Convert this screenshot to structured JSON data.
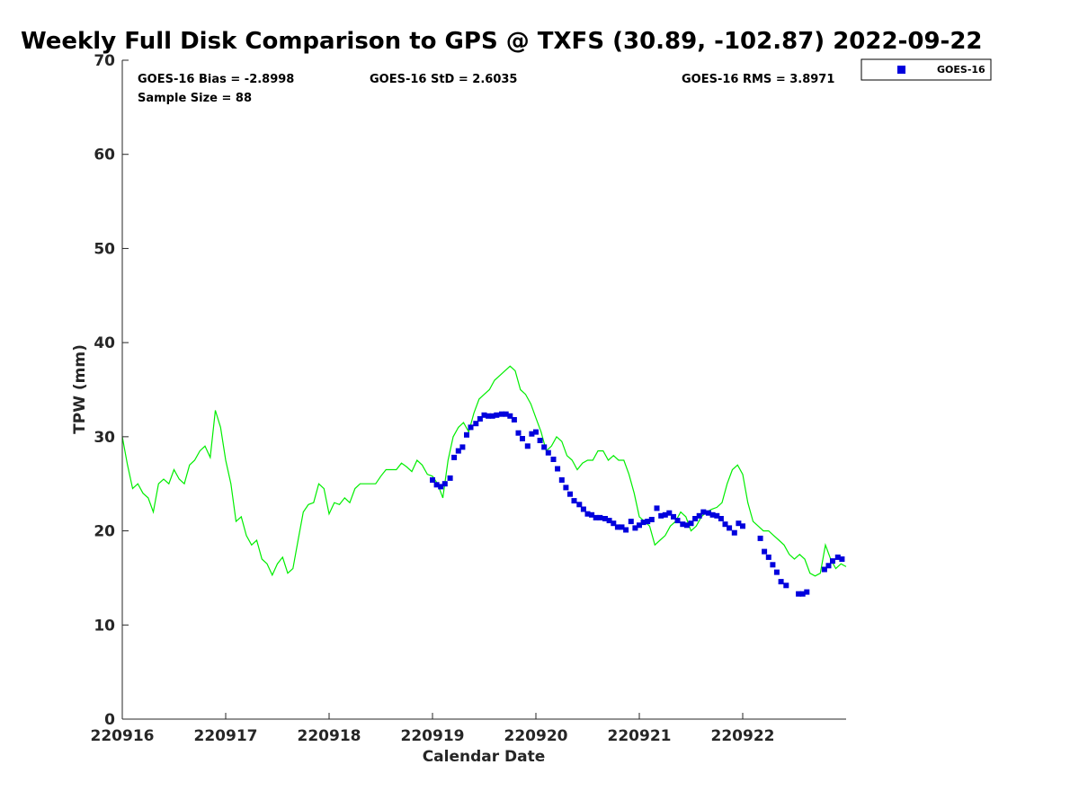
{
  "chart_data": {
    "type": "scatter",
    "title": "Weekly Full Disk Comparison to GPS @ TXFS (30.89, -102.87) 2022-09-22",
    "xlabel": "Calendar Date",
    "ylabel": "TPW (mm)",
    "xlim": [
      0,
      7
    ],
    "ylim": [
      0,
      70
    ],
    "x_tick_labels": [
      "220916",
      "220917",
      "220918",
      "220919",
      "220920",
      "220921",
      "220922"
    ],
    "y_ticks": [
      0,
      10,
      20,
      30,
      40,
      50,
      60,
      70
    ],
    "grid": false,
    "legend_position": "top-right",
    "stats": {
      "bias": "GOES-16 Bias = -2.8998",
      "std": "GOES-16 StD = 2.6035",
      "rms": "GOES-16 RMS = 3.8971",
      "sample": "Sample Size = 88"
    },
    "colors": {
      "goes16": "#0000dd",
      "gps": "#00ee00"
    },
    "series": [
      {
        "name": "GOES-16",
        "type": "scatter",
        "x": [
          3.0,
          3.04,
          3.08,
          3.12,
          3.17,
          3.21,
          3.25,
          3.29,
          3.33,
          3.37,
          3.42,
          3.46,
          3.5,
          3.54,
          3.58,
          3.62,
          3.67,
          3.71,
          3.75,
          3.79,
          3.83,
          3.87,
          3.92,
          3.96,
          4.0,
          4.04,
          4.08,
          4.12,
          4.17,
          4.21,
          4.25,
          4.29,
          4.33,
          4.37,
          4.42,
          4.46,
          4.5,
          4.54,
          4.58,
          4.62,
          4.67,
          4.71,
          4.75,
          4.79,
          4.83,
          4.87,
          4.92,
          4.96,
          5.0,
          5.04,
          5.08,
          5.12,
          5.17,
          5.21,
          5.25,
          5.29,
          5.33,
          5.37,
          5.42,
          5.46,
          5.5,
          5.54,
          5.58,
          5.62,
          5.67,
          5.71,
          5.75,
          5.79,
          5.83,
          5.87,
          5.92,
          5.96,
          6.0,
          6.17,
          6.21,
          6.25,
          6.29,
          6.33,
          6.37,
          6.42,
          6.54,
          6.58,
          6.62,
          6.79,
          6.83,
          6.87,
          6.92,
          6.96
        ],
        "values": [
          25.4,
          24.9,
          24.7,
          25.0,
          25.6,
          27.8,
          28.5,
          28.9,
          30.2,
          31.0,
          31.4,
          31.9,
          32.3,
          32.2,
          32.2,
          32.3,
          32.4,
          32.4,
          32.2,
          31.8,
          30.4,
          29.8,
          29.0,
          30.3,
          30.5,
          29.6,
          28.9,
          28.3,
          27.6,
          26.6,
          25.4,
          24.6,
          23.9,
          23.2,
          22.8,
          22.3,
          21.8,
          21.7,
          21.4,
          21.4,
          21.3,
          21.1,
          20.8,
          20.4,
          20.4,
          20.1,
          21.0,
          20.3,
          20.6,
          20.9,
          21.0,
          21.2,
          22.4,
          21.6,
          21.7,
          21.9,
          21.5,
          21.1,
          20.7,
          20.6,
          20.8,
          21.3,
          21.6,
          22.0,
          21.9,
          21.7,
          21.6,
          21.3,
          20.7,
          20.3,
          19.8,
          20.8,
          20.5,
          19.2,
          17.8,
          17.2,
          16.4,
          15.6,
          14.6,
          14.2,
          13.3,
          13.3,
          13.5,
          15.9,
          16.3,
          16.8,
          17.2,
          17.0
        ]
      },
      {
        "name": "GPS",
        "type": "line",
        "x": [
          0.0,
          0.05,
          0.1,
          0.15,
          0.2,
          0.25,
          0.3,
          0.35,
          0.4,
          0.45,
          0.5,
          0.55,
          0.6,
          0.65,
          0.7,
          0.75,
          0.8,
          0.85,
          0.9,
          0.95,
          1.0,
          1.05,
          1.1,
          1.15,
          1.2,
          1.25,
          1.3,
          1.35,
          1.4,
          1.45,
          1.5,
          1.55,
          1.6,
          1.65,
          1.7,
          1.75,
          1.8,
          1.85,
          1.9,
          1.95,
          2.0,
          2.05,
          2.1,
          2.15,
          2.2,
          2.25,
          2.3,
          2.35,
          2.4,
          2.45,
          2.5,
          2.55,
          2.6,
          2.65,
          2.7,
          2.75,
          2.8,
          2.85,
          2.9,
          2.95,
          3.0,
          3.05,
          3.1,
          3.15,
          3.2,
          3.25,
          3.3,
          3.35,
          3.4,
          3.45,
          3.5,
          3.55,
          3.6,
          3.65,
          3.7,
          3.75,
          3.8,
          3.85,
          3.9,
          3.95,
          4.0,
          4.05,
          4.1,
          4.15,
          4.2,
          4.25,
          4.3,
          4.35,
          4.4,
          4.45,
          4.5,
          4.55,
          4.6,
          4.65,
          4.7,
          4.75,
          4.8,
          4.85,
          4.9,
          4.95,
          5.0,
          5.05,
          5.1,
          5.15,
          5.2,
          5.25,
          5.3,
          5.35,
          5.4,
          5.45,
          5.5,
          5.55,
          5.6,
          5.65,
          5.7,
          5.75,
          5.8,
          5.85,
          5.9,
          5.95,
          6.0,
          6.05,
          6.1,
          6.15,
          6.2,
          6.25,
          6.3,
          6.35,
          6.4,
          6.45,
          6.5,
          6.55,
          6.6,
          6.65,
          6.7,
          6.75,
          6.8,
          6.85,
          6.9,
          6.95,
          7.0
        ],
        "values": [
          30.0,
          27.0,
          24.5,
          25.0,
          24.0,
          23.5,
          22.0,
          25.0,
          25.5,
          25.0,
          26.5,
          25.5,
          25.0,
          27.0,
          27.5,
          28.5,
          29.0,
          27.8,
          32.8,
          31.0,
          27.5,
          25.0,
          21.0,
          21.5,
          19.5,
          18.5,
          19.0,
          17.0,
          16.5,
          15.3,
          16.5,
          17.2,
          15.5,
          16.0,
          19.0,
          22.0,
          22.8,
          23.0,
          25.0,
          24.5,
          21.8,
          23.0,
          22.8,
          23.5,
          23.0,
          24.5,
          25.0,
          25.0,
          25.0,
          25.0,
          25.8,
          26.5,
          26.5,
          26.5,
          27.2,
          26.8,
          26.3,
          27.5,
          27.0,
          26.0,
          25.8,
          25.0,
          23.5,
          27.5,
          30.0,
          31.0,
          31.5,
          30.5,
          32.5,
          34.0,
          34.5,
          35.0,
          36.0,
          36.5,
          37.0,
          37.5,
          37.0,
          35.0,
          34.5,
          33.5,
          32.0,
          30.5,
          28.5,
          29.0,
          30.0,
          29.5,
          28.0,
          27.5,
          26.5,
          27.2,
          27.5,
          27.5,
          28.5,
          28.5,
          27.5,
          28.0,
          27.5,
          27.5,
          26.0,
          24.0,
          21.5,
          21.0,
          20.5,
          18.5,
          19.0,
          19.5,
          20.5,
          21.0,
          22.0,
          21.5,
          20.0,
          20.5,
          21.5,
          22.0,
          22.3,
          22.5,
          23.0,
          25.0,
          26.5,
          27.0,
          26.0,
          23.0,
          21.0,
          20.5,
          20.0,
          20.0,
          19.5,
          19.0,
          18.5,
          17.5,
          17.0,
          17.5,
          17.0,
          15.5,
          15.2,
          15.5,
          18.5,
          17.0,
          16.0,
          16.5,
          16.2
        ]
      }
    ]
  }
}
